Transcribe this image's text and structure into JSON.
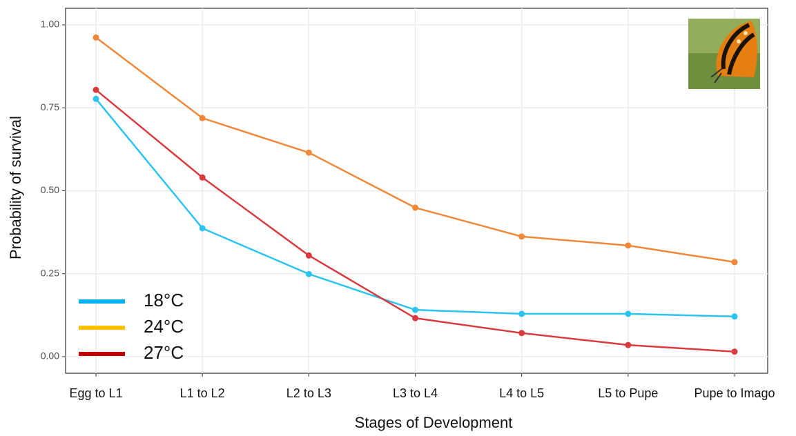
{
  "chart_data": {
    "type": "line",
    "x_label": "Stages of Development",
    "y_label": "Probability of survival",
    "categories": [
      "Egg to L1",
      "L1 to L2",
      "L2 to L3",
      "L3 to L4",
      "L4 to L5",
      "L5 to Pupe",
      "Pupe to Imago"
    ],
    "series": [
      {
        "name": "18°C",
        "color": "#2bc3f0",
        "legend_color": "#00b0f0",
        "values": [
          0.777,
          0.387,
          0.249,
          0.141,
          0.129,
          0.129,
          0.121
        ]
      },
      {
        "name": "24°C",
        "color": "#f0883a",
        "legend_color": "#ffc000",
        "values": [
          0.962,
          0.719,
          0.615,
          0.449,
          0.362,
          0.335,
          0.285
        ]
      },
      {
        "name": "27°C",
        "color": "#d93a3e",
        "legend_color": "#c00000",
        "values": [
          0.804,
          0.54,
          0.305,
          0.116,
          0.071,
          0.035,
          0.015
        ]
      }
    ],
    "ylim": [
      -0.05,
      1.05
    ],
    "yticks": [
      {
        "value": 0,
        "label": "0.00"
      },
      0.25,
      {
        "value": 0.5,
        "label": "0.50"
      },
      0.75,
      {
        "value": 1,
        "label": "1.00"
      }
    ],
    "grid": true,
    "legend_position": "bottom-left"
  }
}
